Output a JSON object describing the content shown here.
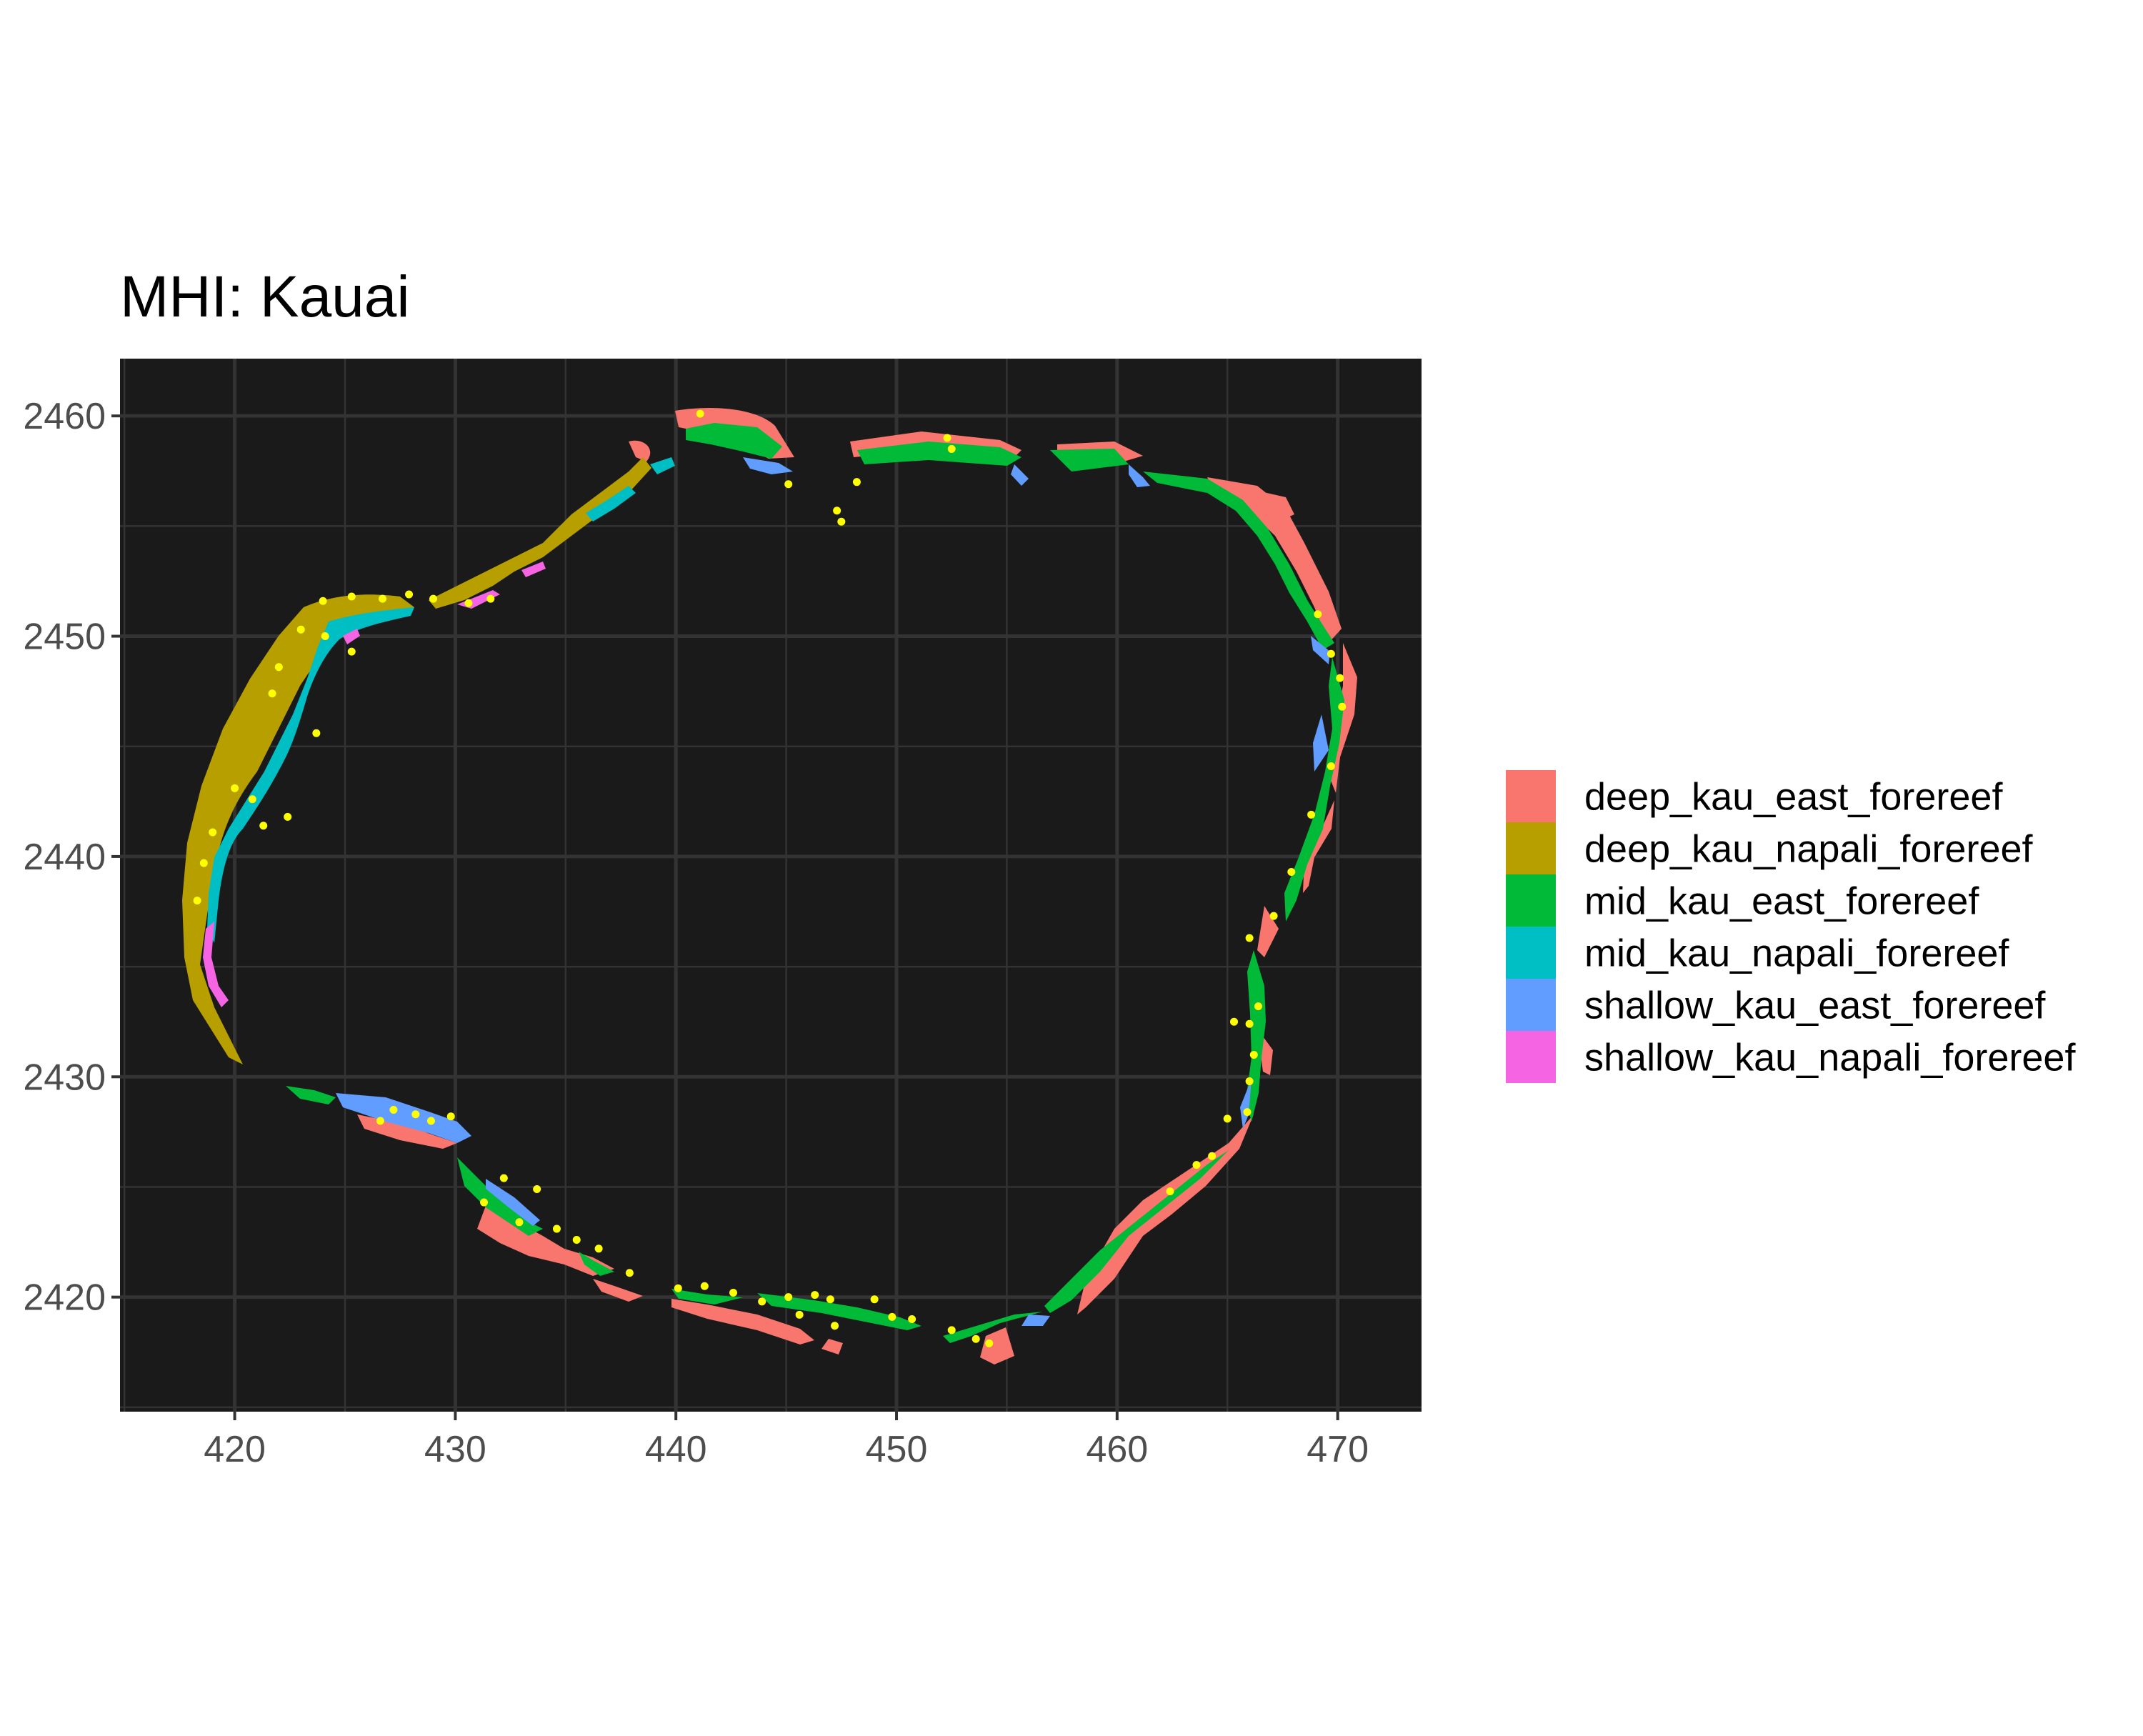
{
  "chart_data": {
    "type": "map",
    "title": "MHI: Kauai",
    "xlabel": "",
    "ylabel": "",
    "x_ticks": [
      420,
      430,
      440,
      450,
      460,
      470
    ],
    "y_ticks": [
      2420,
      2430,
      2440,
      2450,
      2460
    ],
    "xlim": [
      414.8,
      473.8
    ],
    "ylim": [
      2414.8,
      2462.6
    ],
    "grid": true,
    "background": "#1a1a1a",
    "gridline_color": "#333333",
    "legend_position": "right",
    "legend": [
      {
        "name": "deep_kau_east_forereef",
        "color": "#F8766D"
      },
      {
        "name": "deep_kau_napali_forereef",
        "color": "#B79F00"
      },
      {
        "name": "mid_kau_east_forereef",
        "color": "#00BA38"
      },
      {
        "name": "mid_kau_napali_forereef",
        "color": "#00BFC4"
      },
      {
        "name": "shallow_kau_east_forereef",
        "color": "#619CFF"
      },
      {
        "name": "shallow_kau_napali_forereef",
        "color": "#F564E3"
      }
    ],
    "survey_points_color": "#FFFF00",
    "survey_points": [
      [
        441.1,
        2460.1
      ],
      [
        452.3,
        2459.0
      ],
      [
        452.5,
        2458.5
      ],
      [
        447.3,
        2455.7
      ],
      [
        447.5,
        2455.2
      ],
      [
        445.1,
        2456.9
      ],
      [
        448.2,
        2457.0
      ],
      [
        424.0,
        2451.6
      ],
      [
        425.3,
        2451.8
      ],
      [
        426.7,
        2451.7
      ],
      [
        427.9,
        2451.9
      ],
      [
        429.0,
        2451.7
      ],
      [
        430.6,
        2451.5
      ],
      [
        431.6,
        2451.7
      ],
      [
        423.0,
        2450.3
      ],
      [
        424.1,
        2450.0
      ],
      [
        425.3,
        2449.3
      ],
      [
        422.0,
        2448.6
      ],
      [
        421.7,
        2447.4
      ],
      [
        423.7,
        2445.6
      ],
      [
        420.0,
        2443.1
      ],
      [
        420.8,
        2442.6
      ],
      [
        419.0,
        2441.1
      ],
      [
        418.6,
        2439.7
      ],
      [
        418.3,
        2438.0
      ],
      [
        421.3,
        2441.4
      ],
      [
        422.4,
        2441.8
      ],
      [
        469.1,
        2451.0
      ],
      [
        469.7,
        2449.2
      ],
      [
        470.1,
        2448.1
      ],
      [
        470.2,
        2446.8
      ],
      [
        469.7,
        2444.1
      ],
      [
        468.8,
        2441.9
      ],
      [
        467.9,
        2439.3
      ],
      [
        467.1,
        2437.3
      ],
      [
        466.0,
        2436.3
      ],
      [
        466.4,
        2433.2
      ],
      [
        466.0,
        2432.4
      ],
      [
        465.3,
        2432.5
      ],
      [
        466.2,
        2431.0
      ],
      [
        466.0,
        2429.8
      ],
      [
        465.9,
        2428.4
      ],
      [
        465.0,
        2428.1
      ],
      [
        464.3,
        2426.4
      ],
      [
        463.6,
        2426.0
      ],
      [
        462.4,
        2424.8
      ],
      [
        426.6,
        2428.0
      ],
      [
        427.2,
        2428.5
      ],
      [
        428.2,
        2428.3
      ],
      [
        428.9,
        2428.0
      ],
      [
        429.8,
        2428.2
      ],
      [
        431.3,
        2424.3
      ],
      [
        432.2,
        2425.4
      ],
      [
        432.9,
        2423.4
      ],
      [
        433.7,
        2424.9
      ],
      [
        434.6,
        2423.1
      ],
      [
        435.5,
        2422.6
      ],
      [
        436.5,
        2422.2
      ],
      [
        437.9,
        2421.1
      ],
      [
        440.1,
        2420.4
      ],
      [
        441.3,
        2420.5
      ],
      [
        442.6,
        2420.2
      ],
      [
        443.9,
        2419.8
      ],
      [
        445.1,
        2420.0
      ],
      [
        445.6,
        2419.2
      ],
      [
        446.3,
        2420.1
      ],
      [
        447.0,
        2419.9
      ],
      [
        447.2,
        2418.7
      ],
      [
        449.0,
        2419.9
      ],
      [
        449.8,
        2419.1
      ],
      [
        450.7,
        2419.0
      ],
      [
        452.5,
        2418.5
      ],
      [
        453.6,
        2418.1
      ],
      [
        454.2,
        2417.9
      ]
    ]
  }
}
